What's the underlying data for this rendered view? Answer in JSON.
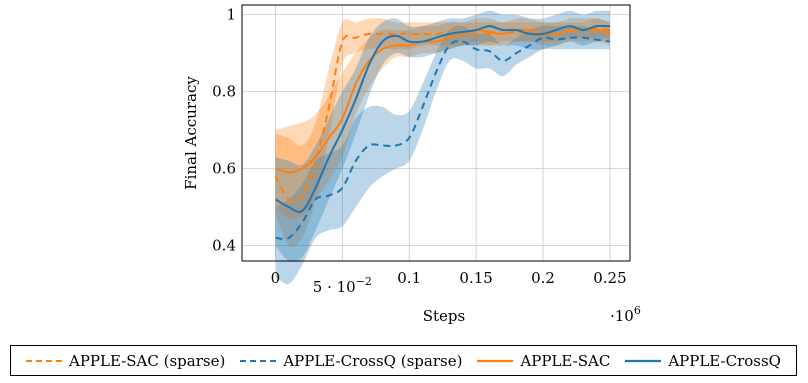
{
  "chart_data": {
    "type": "line",
    "xlabel": "Steps",
    "ylabel": "Final Accuracy",
    "x_multiplier": "·10",
    "x_multiplier_exp": "6",
    "xlim": [
      -0.025,
      0.265
    ],
    "ylim": [
      0.36,
      1.025
    ],
    "x_ticks": [
      {
        "value": 0,
        "label": "0"
      },
      {
        "value": 0.05,
        "label": "5 · 10",
        "exp": "−2"
      },
      {
        "value": 0.1,
        "label": "0.1"
      },
      {
        "value": 0.15,
        "label": "0.15"
      },
      {
        "value": 0.2,
        "label": "0.2"
      },
      {
        "value": 0.25,
        "label": "0.25"
      }
    ],
    "y_ticks": [
      {
        "value": 0.4,
        "label": "0.4"
      },
      {
        "value": 0.6,
        "label": "0.6"
      },
      {
        "value": 0.8,
        "label": "0.8"
      },
      {
        "value": 1.0,
        "label": "1"
      }
    ],
    "grid": true,
    "legend_position": "bottom",
    "series": [
      {
        "name": "APPLE-SAC (sparse)",
        "color": "#ff7f0e",
        "dash": "dashed",
        "x": [
          0,
          0.01,
          0.02,
          0.03,
          0.04,
          0.05,
          0.06,
          0.07,
          0.08,
          0.09,
          0.1,
          0.11,
          0.12,
          0.13,
          0.14,
          0.15,
          0.16,
          0.17,
          0.18,
          0.19,
          0.2,
          0.21,
          0.22,
          0.23,
          0.24,
          0.25
        ],
        "y": [
          0.58,
          0.52,
          0.53,
          0.62,
          0.76,
          0.93,
          0.94,
          0.95,
          0.95,
          0.95,
          0.95,
          0.95,
          0.95,
          0.955,
          0.95,
          0.95,
          0.95,
          0.95,
          0.955,
          0.95,
          0.95,
          0.95,
          0.96,
          0.96,
          0.965,
          0.96
        ],
        "lower": [
          0.48,
          0.4,
          0.42,
          0.52,
          0.68,
          0.87,
          0.9,
          0.91,
          0.91,
          0.91,
          0.91,
          0.92,
          0.92,
          0.92,
          0.92,
          0.92,
          0.92,
          0.93,
          0.93,
          0.93,
          0.93,
          0.93,
          0.94,
          0.94,
          0.94,
          0.94
        ],
        "upper": [
          0.69,
          0.68,
          0.66,
          0.72,
          0.86,
          0.98,
          0.98,
          0.99,
          0.99,
          0.98,
          0.98,
          0.98,
          0.98,
          0.98,
          0.98,
          0.98,
          0.98,
          0.98,
          0.98,
          0.98,
          0.98,
          0.98,
          0.98,
          0.98,
          0.99,
          0.98
        ]
      },
      {
        "name": "APPLE-CrossQ (sparse)",
        "color": "#1f77b4",
        "dash": "dashed",
        "x": [
          0,
          0.01,
          0.02,
          0.03,
          0.04,
          0.05,
          0.06,
          0.07,
          0.08,
          0.09,
          0.1,
          0.11,
          0.12,
          0.13,
          0.14,
          0.15,
          0.16,
          0.17,
          0.18,
          0.19,
          0.2,
          0.21,
          0.22,
          0.23,
          0.24,
          0.25
        ],
        "y": [
          0.42,
          0.42,
          0.46,
          0.52,
          0.53,
          0.55,
          0.62,
          0.66,
          0.66,
          0.66,
          0.68,
          0.76,
          0.85,
          0.92,
          0.93,
          0.91,
          0.905,
          0.88,
          0.9,
          0.92,
          0.94,
          0.935,
          0.94,
          0.94,
          0.935,
          0.93
        ],
        "lower": [
          0.32,
          0.3,
          0.35,
          0.42,
          0.44,
          0.45,
          0.5,
          0.55,
          0.58,
          0.6,
          0.62,
          0.7,
          0.8,
          0.88,
          0.88,
          0.86,
          0.86,
          0.84,
          0.87,
          0.89,
          0.91,
          0.91,
          0.91,
          0.91,
          0.91,
          0.91
        ],
        "upper": [
          0.5,
          0.52,
          0.56,
          0.62,
          0.64,
          0.66,
          0.73,
          0.76,
          0.76,
          0.74,
          0.75,
          0.82,
          0.9,
          0.96,
          0.97,
          0.95,
          0.95,
          0.92,
          0.94,
          0.96,
          0.97,
          0.97,
          0.97,
          0.97,
          0.96,
          0.96
        ]
      },
      {
        "name": "APPLE-SAC",
        "color": "#ff7f0e",
        "dash": "solid",
        "x": [
          0,
          0.01,
          0.02,
          0.03,
          0.04,
          0.05,
          0.06,
          0.07,
          0.08,
          0.09,
          0.1,
          0.11,
          0.12,
          0.13,
          0.14,
          0.15,
          0.16,
          0.17,
          0.18,
          0.19,
          0.2,
          0.21,
          0.22,
          0.23,
          0.24,
          0.25
        ],
        "y": [
          0.6,
          0.59,
          0.6,
          0.63,
          0.68,
          0.73,
          0.82,
          0.88,
          0.91,
          0.92,
          0.92,
          0.93,
          0.93,
          0.94,
          0.95,
          0.96,
          0.955,
          0.95,
          0.96,
          0.96,
          0.95,
          0.95,
          0.96,
          0.96,
          0.96,
          0.95
        ],
        "lower": [
          0.5,
          0.47,
          0.48,
          0.52,
          0.57,
          0.63,
          0.74,
          0.81,
          0.86,
          0.89,
          0.89,
          0.9,
          0.9,
          0.91,
          0.92,
          0.93,
          0.92,
          0.92,
          0.93,
          0.93,
          0.92,
          0.92,
          0.93,
          0.93,
          0.93,
          0.92
        ],
        "upper": [
          0.7,
          0.71,
          0.72,
          0.74,
          0.79,
          0.85,
          0.9,
          0.94,
          0.96,
          0.96,
          0.96,
          0.97,
          0.97,
          0.98,
          0.98,
          0.99,
          0.99,
          0.98,
          0.99,
          0.99,
          0.98,
          0.98,
          0.99,
          0.99,
          0.99,
          0.98
        ]
      },
      {
        "name": "APPLE-CrossQ",
        "color": "#1f77b4",
        "dash": "solid",
        "x": [
          0,
          0.01,
          0.02,
          0.03,
          0.04,
          0.05,
          0.06,
          0.07,
          0.08,
          0.09,
          0.1,
          0.11,
          0.12,
          0.13,
          0.14,
          0.15,
          0.16,
          0.17,
          0.18,
          0.19,
          0.2,
          0.21,
          0.22,
          0.23,
          0.24,
          0.25
        ],
        "y": [
          0.52,
          0.5,
          0.49,
          0.55,
          0.63,
          0.7,
          0.78,
          0.87,
          0.93,
          0.945,
          0.93,
          0.93,
          0.94,
          0.95,
          0.955,
          0.96,
          0.97,
          0.96,
          0.96,
          0.95,
          0.95,
          0.96,
          0.97,
          0.96,
          0.97,
          0.97
        ],
        "lower": [
          0.4,
          0.36,
          0.37,
          0.44,
          0.52,
          0.6,
          0.69,
          0.79,
          0.87,
          0.9,
          0.89,
          0.89,
          0.9,
          0.91,
          0.92,
          0.92,
          0.93,
          0.92,
          0.92,
          0.91,
          0.91,
          0.92,
          0.93,
          0.92,
          0.93,
          0.93
        ],
        "upper": [
          0.63,
          0.62,
          0.61,
          0.66,
          0.73,
          0.8,
          0.86,
          0.94,
          0.98,
          0.99,
          0.97,
          0.97,
          0.98,
          0.99,
          0.99,
          1.0,
          1.01,
          1.0,
          1.0,
          0.99,
          0.99,
          1.0,
          1.01,
          1.0,
          1.01,
          1.01
        ]
      }
    ]
  }
}
